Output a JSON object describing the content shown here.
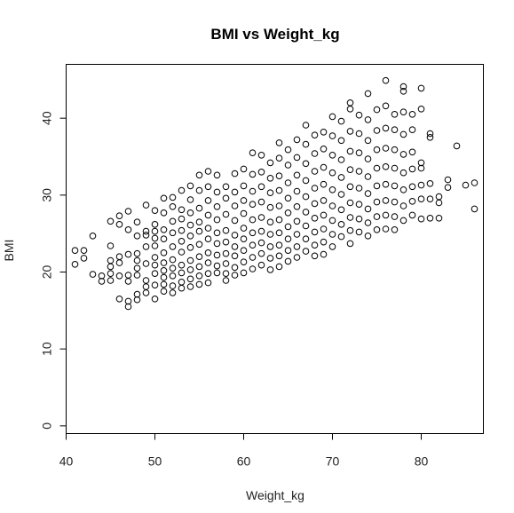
{
  "chart_data": {
    "type": "scatter",
    "title": "BMI vs Weight_kg",
    "xlabel": "Weight_kg",
    "ylabel": "BMI",
    "xlim": [
      40,
      87
    ],
    "ylim": [
      -1,
      47
    ],
    "xticks": [
      40,
      50,
      60,
      70,
      80
    ],
    "yticks": [
      0,
      10,
      20,
      30,
      40
    ],
    "grid": false,
    "marker": "open-circle",
    "point_color": "#000000",
    "points": [
      [
        41,
        21
      ],
      [
        41,
        22.8
      ],
      [
        42,
        22.8
      ],
      [
        42,
        21.8
      ],
      [
        43,
        24.7
      ],
      [
        43,
        19.7
      ],
      [
        44,
        18.8
      ],
      [
        44,
        19.5
      ],
      [
        45,
        26.6
      ],
      [
        45,
        23.4
      ],
      [
        45,
        19.8
      ],
      [
        45,
        18.9
      ],
      [
        45,
        20.7
      ],
      [
        45,
        21.5
      ],
      [
        46,
        26.2
      ],
      [
        46,
        22
      ],
      [
        46,
        21.2
      ],
      [
        46,
        19.5
      ],
      [
        46,
        16.5
      ],
      [
        46,
        27.3
      ],
      [
        47,
        25.5
      ],
      [
        47,
        27.9
      ],
      [
        47,
        22.3
      ],
      [
        47,
        19.6
      ],
      [
        47,
        18.8
      ],
      [
        47,
        16.2
      ],
      [
        47,
        15.5
      ],
      [
        48,
        26.5
      ],
      [
        48,
        24.7
      ],
      [
        48,
        22.4
      ],
      [
        48,
        21.5
      ],
      [
        48,
        20.5
      ],
      [
        48,
        19.6
      ],
      [
        48,
        17.1
      ],
      [
        48,
        16.4
      ],
      [
        49,
        28.7
      ],
      [
        49,
        25.3
      ],
      [
        49,
        24.8
      ],
      [
        49,
        23.3
      ],
      [
        49,
        21.1
      ],
      [
        49,
        18.9
      ],
      [
        49,
        18.1
      ],
      [
        49,
        17.3
      ],
      [
        50,
        28
      ],
      [
        50,
        26.2
      ],
      [
        50,
        25.3
      ],
      [
        50,
        24.4
      ],
      [
        50,
        23.4
      ],
      [
        50,
        21.9
      ],
      [
        50,
        20.9
      ],
      [
        50,
        19.8
      ],
      [
        50,
        18.3
      ],
      [
        50,
        16.5
      ],
      [
        51,
        29.6
      ],
      [
        51,
        27.7
      ],
      [
        51,
        25.5
      ],
      [
        51,
        24.3
      ],
      [
        51,
        22.5
      ],
      [
        51,
        21.2
      ],
      [
        51,
        20.2
      ],
      [
        51,
        19.3
      ],
      [
        51,
        18.4
      ],
      [
        51,
        17.5
      ],
      [
        52,
        29.7
      ],
      [
        52,
        28.5
      ],
      [
        52,
        26.6
      ],
      [
        52,
        25.1
      ],
      [
        52,
        23.3
      ],
      [
        52,
        21.6
      ],
      [
        52,
        20.5
      ],
      [
        52,
        19.5
      ],
      [
        52,
        18.2
      ],
      [
        52,
        17.3
      ],
      [
        53,
        30.6
      ],
      [
        53,
        28.1
      ],
      [
        53,
        26.9
      ],
      [
        53,
        25.4
      ],
      [
        53,
        24
      ],
      [
        53,
        22.6
      ],
      [
        53,
        20.9
      ],
      [
        53,
        19.9
      ],
      [
        53,
        18.7
      ],
      [
        53,
        17.9
      ],
      [
        54,
        31.2
      ],
      [
        54,
        29.4
      ],
      [
        54,
        27.7
      ],
      [
        54,
        26.1
      ],
      [
        54,
        24.7
      ],
      [
        54,
        23.2
      ],
      [
        54,
        21.5
      ],
      [
        54,
        20.3
      ],
      [
        54,
        19.1
      ],
      [
        54,
        18.1
      ],
      [
        55,
        32.6
      ],
      [
        55,
        30.6
      ],
      [
        55,
        28.3
      ],
      [
        55,
        26.5
      ],
      [
        55,
        25.3
      ],
      [
        55,
        23.6
      ],
      [
        55,
        22
      ],
      [
        55,
        20.7
      ],
      [
        55,
        19.5
      ],
      [
        55,
        18.4
      ],
      [
        56,
        33.1
      ],
      [
        56,
        31.1
      ],
      [
        56,
        29.3
      ],
      [
        56,
        27.4
      ],
      [
        56,
        25.7
      ],
      [
        56,
        24.3
      ],
      [
        56,
        22.5
      ],
      [
        56,
        21.2
      ],
      [
        56,
        19.8
      ],
      [
        56,
        18.6
      ],
      [
        57,
        32.6
      ],
      [
        57,
        30.4
      ],
      [
        57,
        28.5
      ],
      [
        57,
        26.8
      ],
      [
        57,
        25.1
      ],
      [
        57,
        23.7
      ],
      [
        57,
        22.2
      ],
      [
        57,
        20.8
      ],
      [
        57,
        19.9
      ],
      [
        58,
        31.1
      ],
      [
        58,
        29.6
      ],
      [
        58,
        27.5
      ],
      [
        58,
        25.4
      ],
      [
        58,
        23.9
      ],
      [
        58,
        22.4
      ],
      [
        58,
        21.1
      ],
      [
        58,
        19.8
      ],
      [
        58,
        18.9
      ],
      [
        59,
        32.8
      ],
      [
        59,
        30.4
      ],
      [
        59,
        28.6
      ],
      [
        59,
        26.7
      ],
      [
        59,
        24.8
      ],
      [
        59,
        23.3
      ],
      [
        59,
        22.1
      ],
      [
        59,
        20.6
      ],
      [
        59,
        19.6
      ],
      [
        60,
        33.4
      ],
      [
        60,
        31.2
      ],
      [
        60,
        29.3
      ],
      [
        60,
        27.6
      ],
      [
        60,
        25.7
      ],
      [
        60,
        24.3
      ],
      [
        60,
        22.8
      ],
      [
        60,
        21.3
      ],
      [
        60,
        19.9
      ],
      [
        61,
        35.5
      ],
      [
        61,
        32.7
      ],
      [
        61,
        30.5
      ],
      [
        61,
        28.8
      ],
      [
        61,
        26.8
      ],
      [
        61,
        25.1
      ],
      [
        61,
        23.5
      ],
      [
        61,
        21.9
      ],
      [
        61,
        20.4
      ],
      [
        62,
        35.2
      ],
      [
        62,
        33
      ],
      [
        62,
        31.1
      ],
      [
        62,
        29.1
      ],
      [
        62,
        27.1
      ],
      [
        62,
        25.3
      ],
      [
        62,
        23.8
      ],
      [
        62,
        22.4
      ],
      [
        62,
        20.9
      ],
      [
        63,
        34.2
      ],
      [
        63,
        32.2
      ],
      [
        63,
        30.3
      ],
      [
        63,
        28.4
      ],
      [
        63,
        26.5
      ],
      [
        63,
        24.9
      ],
      [
        63,
        23.3
      ],
      [
        63,
        21.8
      ],
      [
        63,
        20.3
      ],
      [
        64,
        36.8
      ],
      [
        64,
        34.8
      ],
      [
        64,
        32.5
      ],
      [
        64,
        30.6
      ],
      [
        64,
        28.6
      ],
      [
        64,
        26.8
      ],
      [
        64,
        25.1
      ],
      [
        64,
        23.5
      ],
      [
        64,
        22.1
      ],
      [
        64,
        20.7
      ],
      [
        65,
        35.9
      ],
      [
        65,
        33.9
      ],
      [
        65,
        31.6
      ],
      [
        65,
        29.6
      ],
      [
        65,
        27.7
      ],
      [
        65,
        25.9
      ],
      [
        65,
        24.3
      ],
      [
        65,
        22.8
      ],
      [
        65,
        21.4
      ],
      [
        66,
        37.2
      ],
      [
        66,
        34.9
      ],
      [
        66,
        32.6
      ],
      [
        66,
        30.5
      ],
      [
        66,
        28.5
      ],
      [
        66,
        26.6
      ],
      [
        66,
        24.9
      ],
      [
        66,
        23.3
      ],
      [
        66,
        21.9
      ],
      [
        67,
        39.1
      ],
      [
        67,
        36.6
      ],
      [
        67,
        34.1
      ],
      [
        67,
        31.9
      ],
      [
        67,
        29.8
      ],
      [
        67,
        27.8
      ],
      [
        67,
        26
      ],
      [
        67,
        24.3
      ],
      [
        67,
        22.7
      ],
      [
        68,
        37.8
      ],
      [
        68,
        35.4
      ],
      [
        68,
        33.1
      ],
      [
        68,
        30.9
      ],
      [
        68,
        28.9
      ],
      [
        68,
        27
      ],
      [
        68,
        25.2
      ],
      [
        68,
        23.5
      ],
      [
        68,
        22.1
      ],
      [
        69,
        38.2
      ],
      [
        69,
        36
      ],
      [
        69,
        33.6
      ],
      [
        69,
        31.4
      ],
      [
        69,
        29.3
      ],
      [
        69,
        27.4
      ],
      [
        69,
        25.6
      ],
      [
        69,
        23.9
      ],
      [
        69,
        22.3
      ],
      [
        70,
        40.2
      ],
      [
        70,
        37.7
      ],
      [
        70,
        35.2
      ],
      [
        70,
        32.9
      ],
      [
        70,
        30.7
      ],
      [
        70,
        28.6
      ],
      [
        70,
        26.7
      ],
      [
        70,
        24.9
      ],
      [
        70,
        23.3
      ],
      [
        71,
        39.6
      ],
      [
        71,
        37.1
      ],
      [
        71,
        34.6
      ],
      [
        71,
        32.3
      ],
      [
        71,
        30.1
      ],
      [
        71,
        28.1
      ],
      [
        71,
        26.2
      ],
      [
        71,
        24.6
      ],
      [
        72,
        42
      ],
      [
        72,
        41.2
      ],
      [
        72,
        38.3
      ],
      [
        72,
        35.7
      ],
      [
        72,
        33.3
      ],
      [
        72,
        31.1
      ],
      [
        72,
        29
      ],
      [
        72,
        27.1
      ],
      [
        72,
        25.4
      ],
      [
        72,
        23.7
      ],
      [
        73,
        40.4
      ],
      [
        73,
        38
      ],
      [
        73,
        35.5
      ],
      [
        73,
        33.1
      ],
      [
        73,
        30.9
      ],
      [
        73,
        28.8
      ],
      [
        73,
        26.9
      ],
      [
        73,
        25.2
      ],
      [
        74,
        43.2
      ],
      [
        74,
        39.8
      ],
      [
        74,
        37.1
      ],
      [
        74,
        34.7
      ],
      [
        74,
        32.4
      ],
      [
        74,
        30.2
      ],
      [
        74,
        28.2
      ],
      [
        74,
        26.4
      ],
      [
        74,
        24.7
      ],
      [
        75,
        41.1
      ],
      [
        75,
        38.4
      ],
      [
        75,
        35.9
      ],
      [
        75,
        33.5
      ],
      [
        75,
        31.2
      ],
      [
        75,
        29.1
      ],
      [
        75,
        27.2
      ],
      [
        75,
        25.5
      ],
      [
        76,
        44.9
      ],
      [
        76,
        41.6
      ],
      [
        76,
        38.7
      ],
      [
        76,
        36.1
      ],
      [
        76,
        33.7
      ],
      [
        76,
        31.4
      ],
      [
        76,
        29.3
      ],
      [
        76,
        27.4
      ],
      [
        76,
        25.6
      ],
      [
        77,
        40.5
      ],
      [
        77,
        38.5
      ],
      [
        77,
        35.9
      ],
      [
        77,
        33.5
      ],
      [
        77,
        31.2
      ],
      [
        77,
        29.1
      ],
      [
        77,
        27.2
      ],
      [
        77,
        25.5
      ],
      [
        78,
        44.1
      ],
      [
        78,
        43.5
      ],
      [
        78,
        40.8
      ],
      [
        78,
        37.9
      ],
      [
        78,
        35.3
      ],
      [
        78,
        32.9
      ],
      [
        78,
        30.7
      ],
      [
        78,
        28.6
      ],
      [
        78,
        26.7
      ],
      [
        79,
        40.5
      ],
      [
        79,
        38.5
      ],
      [
        79,
        35.6
      ],
      [
        79,
        33.4
      ],
      [
        79,
        31.1
      ],
      [
        79,
        29.2
      ],
      [
        79,
        27.4
      ],
      [
        80,
        43.9
      ],
      [
        80,
        41.2
      ],
      [
        80,
        34.2
      ],
      [
        80,
        33.5
      ],
      [
        80,
        31.3
      ],
      [
        80,
        29.5
      ],
      [
        80,
        26.9
      ],
      [
        81,
        38
      ],
      [
        81,
        37.5
      ],
      [
        81,
        31.5
      ],
      [
        81,
        29.5
      ],
      [
        81,
        27
      ],
      [
        82,
        29.8
      ],
      [
        82,
        29
      ],
      [
        82,
        27
      ],
      [
        83,
        32
      ],
      [
        83,
        31
      ],
      [
        84,
        36.4
      ],
      [
        85,
        31.3
      ],
      [
        86,
        31.6
      ],
      [
        86,
        28.2
      ]
    ]
  }
}
